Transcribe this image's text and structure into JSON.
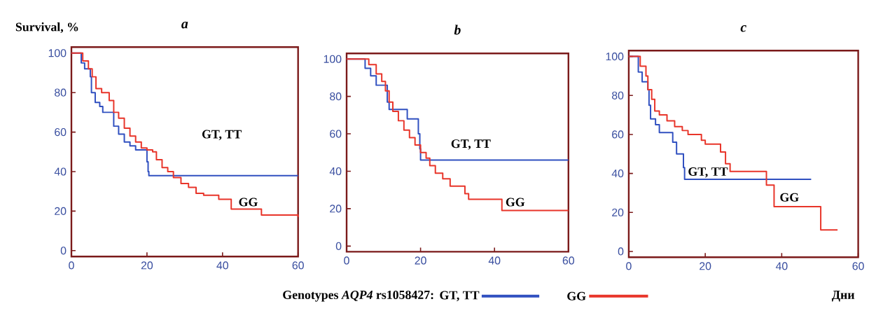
{
  "chart_data": [
    {
      "type": "step",
      "title": "a",
      "ylabel": "Survival, %",
      "legend_title": "Genotypes *AQP4* rs1058427:",
      "legend": "bottom",
      "xlim": [
        0,
        60
      ],
      "ylim": [
        -3,
        103
      ],
      "xticks": [
        0,
        20,
        40,
        60
      ],
      "yticks": [
        0,
        20,
        40,
        60,
        80,
        100
      ],
      "series": [
        {
          "name": "GT, TT",
          "color": "#3050c0",
          "x": [
            0,
            2.6,
            3.5,
            5,
            5.3,
            6.3,
            7.5,
            8.3,
            11.2,
            12.5,
            14,
            15.5,
            17,
            20,
            20.3,
            20.5,
            60
          ],
          "values": [
            100,
            95,
            92,
            88,
            80,
            75,
            73,
            70,
            63,
            59,
            55,
            53,
            51,
            45,
            40,
            38,
            38
          ]
        },
        {
          "name": "GG",
          "color": "#e8352a",
          "x": [
            0,
            3,
            4.5,
            5.5,
            6.5,
            8,
            10,
            11.2,
            12.5,
            14,
            15.5,
            17,
            18.5,
            20,
            21.5,
            22.5,
            24,
            25.5,
            27,
            29,
            31,
            33,
            35,
            39,
            42.3,
            50.3,
            60
          ],
          "values": [
            100,
            96,
            92,
            88,
            82,
            80,
            76,
            70,
            67,
            62,
            58,
            55,
            52,
            51,
            50,
            46,
            42,
            40,
            37,
            34,
            32,
            29,
            28,
            26,
            21,
            18,
            17
          ]
        }
      ],
      "annotations": [
        "GT, TT",
        "GG"
      ]
    },
    {
      "type": "step",
      "title": "b",
      "xlim": [
        0,
        60
      ],
      "ylim": [
        -3,
        103
      ],
      "xticks": [
        0,
        20,
        40,
        60
      ],
      "yticks": [
        0,
        20,
        40,
        60,
        80,
        100
      ],
      "series": [
        {
          "color": "#3050c0",
          "x": [
            0,
            5,
            6.5,
            8,
            11,
            11.5,
            16.4,
            19.4,
            19.8,
            20,
            60
          ],
          "values": [
            100,
            95,
            91,
            86,
            77,
            73,
            68,
            60,
            52,
            46,
            46
          ]
        },
        {
          "color": "#e8352a",
          "x": [
            0,
            6,
            8,
            9.5,
            10.5,
            11.5,
            12.5,
            14,
            15.5,
            17,
            18.5,
            20,
            21.5,
            22.5,
            24,
            26,
            28,
            32,
            33,
            42,
            60
          ],
          "values": [
            100,
            97,
            92,
            88,
            83,
            77,
            72,
            67,
            62,
            58,
            54,
            50,
            47,
            43,
            39,
            36,
            32,
            28,
            25,
            19,
            19
          ]
        }
      ],
      "annotations": [
        "GT, TT",
        "GG"
      ]
    },
    {
      "type": "step",
      "title": "c",
      "xlabel": "Дни",
      "xlim": [
        0,
        60
      ],
      "ylim": [
        -3,
        103
      ],
      "xticks": [
        0,
        20,
        40,
        60
      ],
      "yticks": [
        0,
        20,
        40,
        60,
        80,
        100
      ],
      "series": [
        {
          "color": "#3050c0",
          "x": [
            0,
            2.5,
            3.5,
            5,
            5.3,
            5.7,
            7,
            8,
            11.5,
            12.5,
            14.3,
            14.6,
            47.7
          ],
          "values": [
            100,
            92,
            87,
            83,
            75,
            68,
            65,
            61,
            56,
            50,
            43,
            37,
            37
          ]
        },
        {
          "color": "#e8352a",
          "x": [
            0,
            3,
            4.5,
            5,
            6,
            6.8,
            8,
            10,
            12,
            14,
            15.5,
            19,
            20,
            24,
            25.3,
            26.5,
            36,
            38,
            50.2,
            54.6
          ],
          "values": [
            100,
            95,
            90,
            83,
            78,
            72,
            70,
            67,
            64,
            62,
            60,
            57,
            55,
            51,
            45,
            41,
            34,
            23,
            11,
            11
          ]
        }
      ],
      "annotations": [
        "GT, TT",
        "GG"
      ]
    }
  ]
}
